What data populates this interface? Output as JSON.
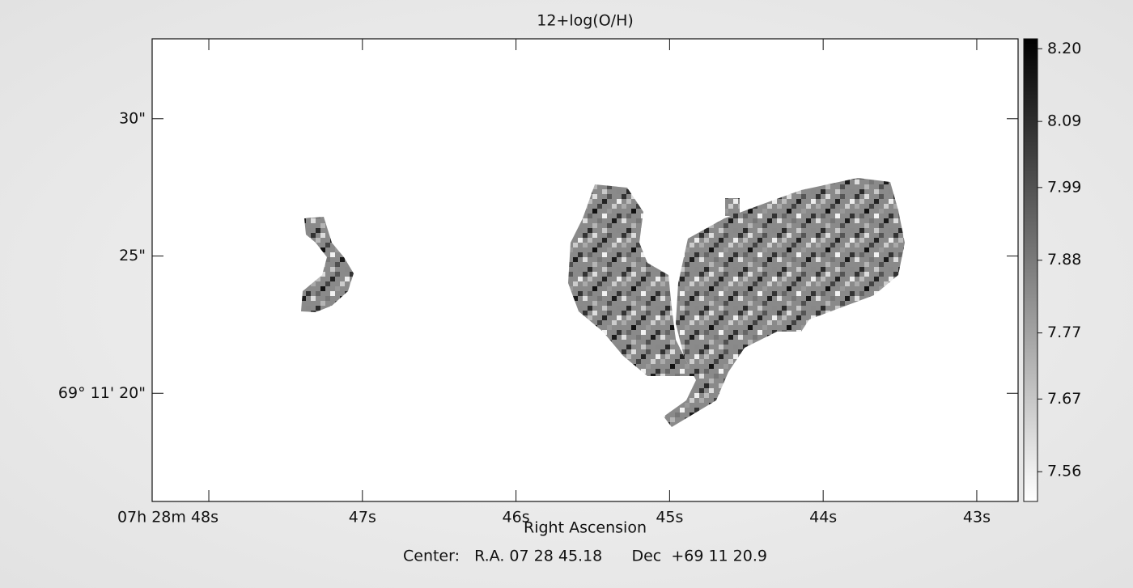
{
  "chart_data": {
    "type": "image",
    "title": "12+log(O/H)",
    "xlabel": "Right Ascension",
    "annotation": "Center:   R.A. 07 28 45.18      Dec  +69 11 20.9",
    "xlim": [
      48.369,
      42.731
    ],
    "xticks": [
      {
        "value": 48,
        "label": "07h 28m 48s"
      },
      {
        "value": 47,
        "label": "47s"
      },
      {
        "value": 46,
        "label": "46s"
      },
      {
        "value": 45,
        "label": "45s"
      },
      {
        "value": 44,
        "label": "44s"
      },
      {
        "value": 43,
        "label": "43s"
      }
    ],
    "ylim": [
      16.06,
      32.91
    ],
    "yticks": [
      {
        "value": 30,
        "label": "30\""
      },
      {
        "value": 25,
        "label": "25\""
      },
      {
        "value": 20,
        "label": "69° 11' 20\""
      }
    ],
    "colormap": "gray",
    "clim": [
      7.515,
      8.215
    ],
    "cticks": [
      {
        "value": 8.2,
        "label": "8.20"
      },
      {
        "value": 8.09,
        "label": "8.09"
      },
      {
        "value": 7.99,
        "label": "7.99"
      },
      {
        "value": 7.88,
        "label": "7.88"
      },
      {
        "value": 7.77,
        "label": "7.77"
      },
      {
        "value": 7.67,
        "label": "7.67"
      },
      {
        "value": 7.56,
        "label": "7.56"
      }
    ]
  }
}
